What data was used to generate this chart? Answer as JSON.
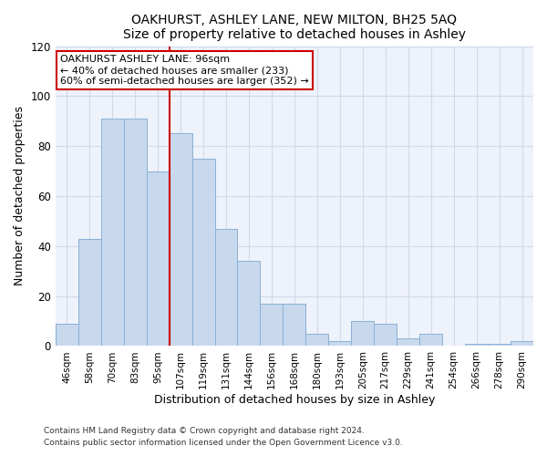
{
  "title": "OAKHURST, ASHLEY LANE, NEW MILTON, BH25 5AQ",
  "subtitle": "Size of property relative to detached houses in Ashley",
  "xlabel": "Distribution of detached houses by size in Ashley",
  "ylabel": "Number of detached properties",
  "bar_labels": [
    "46sqm",
    "58sqm",
    "70sqm",
    "83sqm",
    "95sqm",
    "107sqm",
    "119sqm",
    "131sqm",
    "144sqm",
    "156sqm",
    "168sqm",
    "180sqm",
    "193sqm",
    "205sqm",
    "217sqm",
    "229sqm",
    "241sqm",
    "254sqm",
    "266sqm",
    "278sqm",
    "290sqm"
  ],
  "bar_values": [
    9,
    43,
    91,
    91,
    70,
    85,
    75,
    47,
    34,
    17,
    17,
    5,
    2,
    10,
    9,
    3,
    5,
    0,
    1,
    1,
    2
  ],
  "bar_color": "#c8d9ee",
  "bar_edge_color": "#8ab0d4",
  "vline_x_index": 4,
  "vline_color": "#cc0000",
  "annotation_title": "OAKHURST ASHLEY LANE: 96sqm",
  "annotation_line1": "← 40% of detached houses are smaller (233)",
  "annotation_line2": "60% of semi-detached houses are larger (352) →",
  "annotation_box_color": "#ffffff",
  "annotation_box_edge": "#cc0000",
  "ylim": [
    0,
    120
  ],
  "yticks": [
    0,
    20,
    40,
    60,
    80,
    100,
    120
  ],
  "grid_color": "#d0daea",
  "footer1": "Contains HM Land Registry data © Crown copyright and database right 2024.",
  "footer2": "Contains public sector information licensed under the Open Government Licence v3.0.",
  "background_color": "#ffffff",
  "plot_bg_color": "#eef2fa"
}
